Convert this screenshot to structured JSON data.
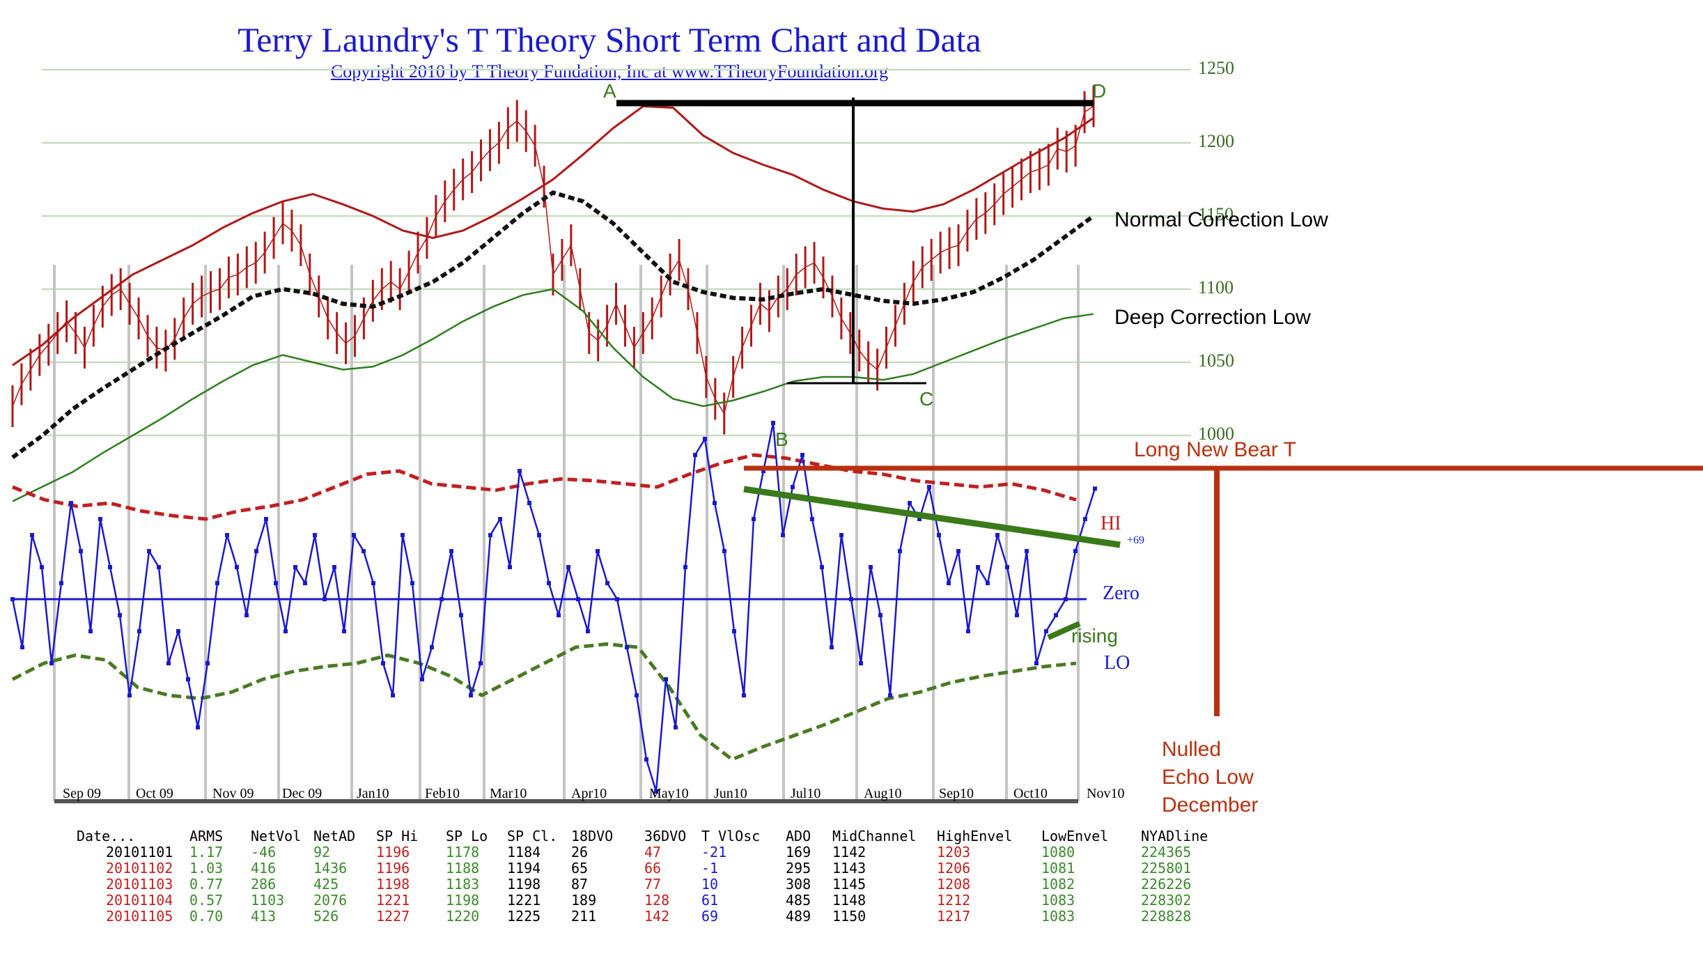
{
  "title": "Terry Laundry's T Theory Short Term Chart and Data",
  "subtitle": "Copyright 2010 by T Theory Fundation, Inc at www.TTheoryFoundation.org",
  "colors": {
    "price": "#b01818",
    "envelope": "#b01818",
    "midchannel": "#111111",
    "lowenvel": "#2e7d1e",
    "gridline": "#c6dcc0",
    "oscillator": "#1a1acc",
    "hi_band": "#c02020",
    "lo_band": "#4a7a22",
    "annotation_green": "#3a7a1a",
    "annotation_red": "#b83010",
    "data_red": "#c02020",
    "data_green": "#3a8a2a",
    "data_blue": "#1a1acc"
  },
  "chart_data": {
    "type": "line",
    "price_axis": {
      "ticks": [
        1000,
        1050,
        1100,
        1150,
        1200,
        1250
      ],
      "ylim": [
        970,
        1255
      ]
    },
    "month_labels": [
      "Sep 09",
      "Oct 09",
      "Nov 09",
      "Dec 09",
      "Jan10",
      "Feb10",
      "Mar10",
      "Apr10",
      "May10",
      "Jun10",
      "Jul10",
      "Aug10",
      "Sep10",
      "Oct10",
      "Nov10"
    ],
    "price_series": {
      "name": "SP",
      "values": [
        1020,
        1035,
        1045,
        1055,
        1062,
        1070,
        1078,
        1070,
        1060,
        1075,
        1088,
        1096,
        1100,
        1090,
        1080,
        1068,
        1060,
        1058,
        1066,
        1080,
        1090,
        1095,
        1098,
        1100,
        1108,
        1110,
        1115,
        1118,
        1125,
        1135,
        1145,
        1140,
        1130,
        1110,
        1095,
        1080,
        1070,
        1063,
        1068,
        1080,
        1092,
        1100,
        1105,
        1100,
        1112,
        1125,
        1135,
        1150,
        1160,
        1168,
        1175,
        1180,
        1188,
        1195,
        1200,
        1210,
        1215,
        1208,
        1198,
        1170,
        1110,
        1120,
        1130,
        1100,
        1070,
        1065,
        1075,
        1090,
        1075,
        1060,
        1070,
        1080,
        1095,
        1110,
        1120,
        1100,
        1070,
        1040,
        1025,
        1015,
        1040,
        1060,
        1075,
        1090,
        1085,
        1095,
        1100,
        1110,
        1115,
        1118,
        1108,
        1095,
        1080,
        1070,
        1058,
        1050,
        1045,
        1060,
        1075,
        1090,
        1105,
        1115,
        1120,
        1125,
        1128,
        1130,
        1140,
        1148,
        1152,
        1158,
        1165,
        1170,
        1175,
        1180,
        1182,
        1185,
        1196,
        1194,
        1198,
        1221,
        1225
      ]
    },
    "high_envelope": {
      "name": "HighEnvel",
      "values": [
        1048,
        1062,
        1080,
        1095,
        1110,
        1120,
        1130,
        1142,
        1152,
        1160,
        1165,
        1158,
        1150,
        1140,
        1135,
        1140,
        1150,
        1162,
        1175,
        1192,
        1210,
        1225,
        1224,
        1205,
        1193,
        1185,
        1178,
        1168,
        1160,
        1155,
        1153,
        1158,
        1168,
        1180,
        1192,
        1203,
        1217
      ]
    },
    "mid_channel": {
      "name": "MidChannel",
      "values": [
        985,
        1000,
        1018,
        1032,
        1045,
        1058,
        1070,
        1082,
        1095,
        1100,
        1097,
        1090,
        1088,
        1096,
        1105,
        1118,
        1135,
        1152,
        1166,
        1160,
        1145,
        1125,
        1105,
        1098,
        1094,
        1093,
        1097,
        1100,
        1096,
        1092,
        1090,
        1093,
        1098,
        1108,
        1120,
        1135,
        1150
      ]
    },
    "low_envelope": {
      "name": "LowEnvel",
      "values": [
        955,
        965,
        975,
        988,
        1000,
        1012,
        1025,
        1037,
        1048,
        1055,
        1050,
        1045,
        1047,
        1055,
        1066,
        1078,
        1088,
        1096,
        1100,
        1085,
        1060,
        1040,
        1025,
        1020,
        1024,
        1030,
        1037,
        1040,
        1040,
        1038,
        1042,
        1050,
        1058,
        1066,
        1073,
        1080,
        1083
      ]
    },
    "oscillator": {
      "name": "T VlOsc",
      "lim": [
        -130,
        140
      ],
      "hi_label": "HI",
      "zero_label": "Zero",
      "lo_label": "LO",
      "last_value_label": "+69",
      "values": [
        0,
        -30,
        40,
        20,
        -40,
        10,
        60,
        30,
        -20,
        50,
        20,
        -10,
        -60,
        -20,
        30,
        20,
        -40,
        -20,
        -50,
        -80,
        -40,
        10,
        40,
        20,
        -10,
        30,
        50,
        10,
        -20,
        20,
        10,
        40,
        0,
        20,
        -20,
        40,
        30,
        10,
        -40,
        -60,
        40,
        10,
        -50,
        -30,
        0,
        30,
        -10,
        -60,
        -40,
        40,
        50,
        20,
        80,
        60,
        40,
        10,
        -10,
        20,
        0,
        -20,
        30,
        10,
        0,
        -30,
        -60,
        -100,
        -120,
        -50,
        -80,
        20,
        90,
        100,
        60,
        30,
        -20,
        -60,
        50,
        80,
        110,
        40,
        70,
        90,
        50,
        20,
        -30,
        40,
        0,
        -40,
        20,
        -10,
        -60,
        30,
        60,
        50,
        70,
        40,
        10,
        30,
        -20,
        20,
        10,
        40,
        20,
        -10,
        30,
        -40,
        -20,
        -10,
        0,
        30,
        50,
        69
      ]
    },
    "hi_band": {
      "values": [
        70,
        62,
        58,
        60,
        55,
        52,
        50,
        55,
        58,
        62,
        70,
        78,
        80,
        72,
        70,
        68,
        72,
        75,
        74,
        72,
        70,
        78,
        85,
        90,
        88,
        84,
        80,
        78,
        74,
        72,
        70,
        72,
        68,
        62
      ]
    },
    "lo_band": {
      "values": [
        -50,
        -40,
        -35,
        -38,
        -55,
        -60,
        -62,
        -58,
        -50,
        -45,
        -42,
        -40,
        -35,
        -40,
        -48,
        -60,
        -50,
        -40,
        -30,
        -28,
        -30,
        -55,
        -85,
        -100,
        -92,
        -85,
        -78,
        -70,
        -62,
        -58,
        -52,
        -48,
        -45,
        -42,
        -40
      ]
    },
    "annotations": {
      "A": "A",
      "B": "B",
      "C": "C",
      "D": "D",
      "normal_correction_low": "Normal Correction Low",
      "deep_correction_low": "Deep Correction Low",
      "long_new_bear_t": "Long New Bear T",
      "rising": "rising",
      "nulled_1": "Nulled",
      "nulled_2": "Echo Low",
      "nulled_3": "December"
    }
  },
  "table": {
    "headers": [
      "Date...",
      "ARMS",
      "NetVol",
      "NetAD",
      "SP Hi",
      "SP Lo",
      "SP Cl.",
      "18DVO",
      "36DVO",
      "T VlOsc",
      "ADO",
      "MidChannel",
      "HighEnvel",
      "LowEnvel",
      "NYADline"
    ],
    "rows": [
      [
        "20101101",
        "1.17",
        "-46",
        "92",
        "1196",
        "1178",
        "1184",
        "26",
        "47",
        "-21",
        "169",
        "1142",
        "1203",
        "1080",
        "224365"
      ],
      [
        "20101102",
        "1.03",
        "416",
        "1436",
        "1196",
        "1188",
        "1194",
        "65",
        "66",
        "-1",
        "295",
        "1143",
        "1206",
        "1081",
        "225801"
      ],
      [
        "20101103",
        "0.77",
        "286",
        "425",
        "1198",
        "1183",
        "1198",
        "87",
        "77",
        "10",
        "308",
        "1145",
        "1208",
        "1082",
        "226226"
      ],
      [
        "20101104",
        "0.57",
        "1103",
        "2076",
        "1221",
        "1198",
        "1221",
        "189",
        "128",
        "61",
        "485",
        "1148",
        "1212",
        "1083",
        "228302"
      ],
      [
        "20101105",
        "0.70",
        "413",
        "526",
        "1227",
        "1220",
        "1225",
        "211",
        "142",
        "69",
        "489",
        "1150",
        "1217",
        "1083",
        "228828"
      ]
    ]
  }
}
